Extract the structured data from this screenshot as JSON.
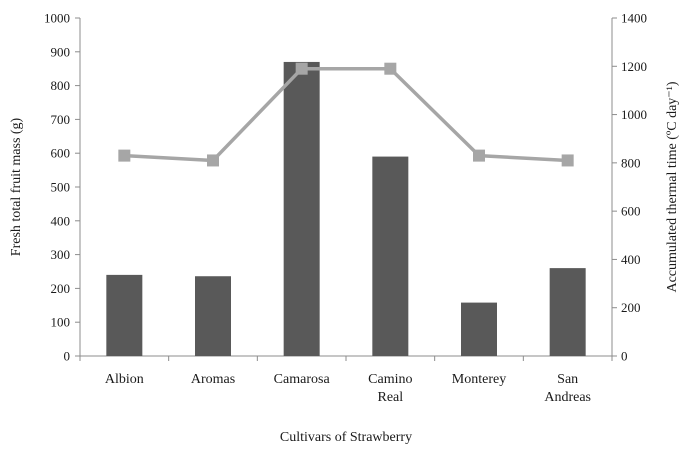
{
  "chart_data": {
    "type": "bar",
    "categories": [
      [
        "Albion"
      ],
      [
        "Aromas"
      ],
      [
        "Camarosa"
      ],
      [
        "Camino",
        "Real"
      ],
      [
        "Monterey"
      ],
      [
        "San",
        "Andreas"
      ]
    ],
    "series": [
      {
        "type": "bar",
        "axis": "left",
        "values": [
          240,
          236,
          870,
          590,
          158,
          260
        ],
        "color": "#595959"
      },
      {
        "type": "line",
        "axis": "right",
        "values": [
          830,
          810,
          1190,
          1190,
          830,
          810
        ],
        "color": "#a6a6a6"
      }
    ],
    "xlabel": "Cultivars of Strawberry",
    "ylabel": "Fresh total fruit mass (g)",
    "y2label": "Accumulated thermal time  (ºC day⁻¹)",
    "ylim": [
      0,
      1000
    ],
    "yticks": [
      "0",
      "100",
      "200",
      "300",
      "400",
      "500",
      "600",
      "700",
      "800",
      "900",
      "1000"
    ],
    "y2lim": [
      0,
      1400
    ],
    "y2ticks": [
      "0",
      "200",
      "400",
      "600",
      "800",
      "1000",
      "1200",
      "1400"
    ],
    "grid": false,
    "legend": "none"
  }
}
